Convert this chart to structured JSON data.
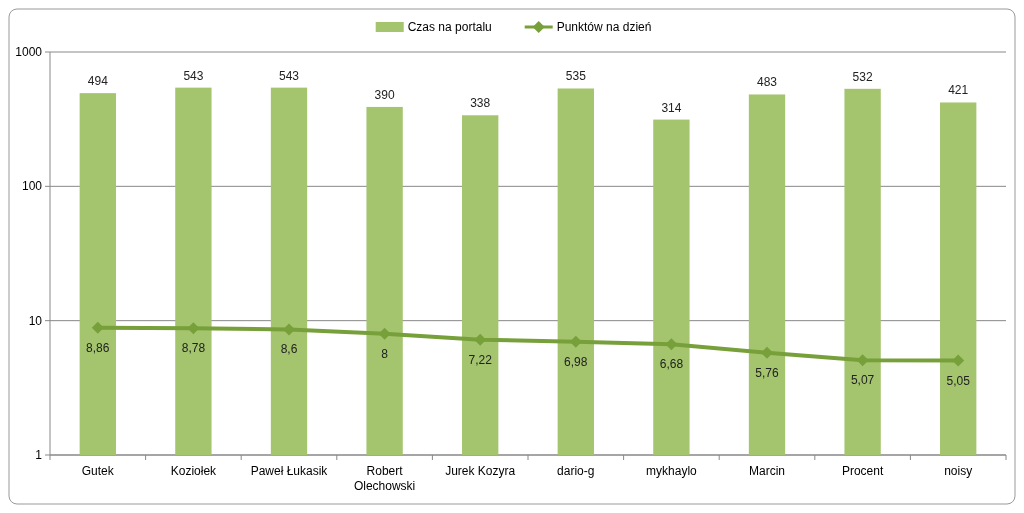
{
  "chart_data": {
    "type": "bar",
    "categories": [
      "Gutek",
      "Koziołek",
      "Paweł Łukasik",
      "Robert Olechowski",
      "Jurek Kozyra",
      "dario-g",
      "mykhaylo",
      "Marcin",
      "Procent",
      "noisy"
    ],
    "series": [
      {
        "name": "Czas na portalu",
        "color": "#a4c46e",
        "values": [
          494,
          543,
          543,
          390,
          338,
          535,
          314,
          483,
          532,
          421
        ],
        "value_labels": [
          "494",
          "543",
          "543",
          "390",
          "338",
          "535",
          "314",
          "483",
          "532",
          "421"
        ]
      },
      {
        "name": "Punktów na dzień",
        "type": "line",
        "color": "#77a03a",
        "marker": "diamond",
        "values": [
          8.86,
          8.78,
          8.6,
          8,
          7.22,
          6.98,
          6.68,
          5.76,
          5.07,
          5.05
        ],
        "value_labels": [
          "8,86",
          "8,78",
          "8,6",
          "8",
          "7,22",
          "6,98",
          "6,68",
          "5,76",
          "5,07",
          "5,05"
        ]
      }
    ],
    "log": true,
    "ylim": [
      1,
      1000
    ],
    "yticks": [
      1,
      10,
      100,
      1000
    ],
    "grid": "y",
    "legend": "top"
  }
}
